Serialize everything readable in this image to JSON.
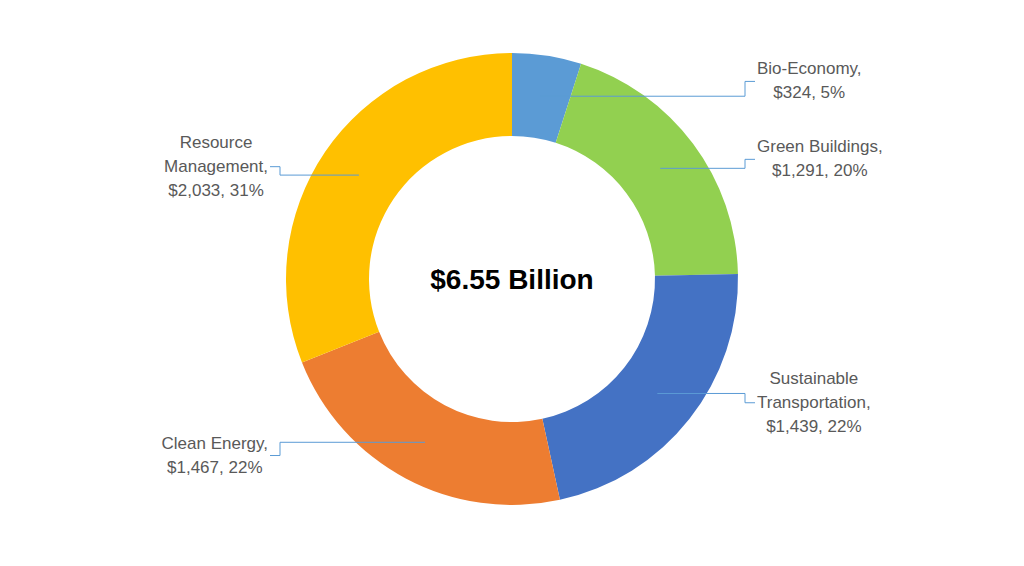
{
  "chart_data": {
    "type": "donut",
    "annotations": [
      "$6.55 Billion"
    ],
    "categories": [
      "Bio-Economy,",
      "Green Buildings,",
      "Sustainable Transportation,",
      "Clean Energy,",
      "Resource Management,"
    ],
    "values": [
      324,
      1291,
      1439,
      1467,
      2033
    ],
    "value_labels": [
      "$324, 5%",
      "$1,291, 20%",
      "$1,439, 22%",
      "$1,467, 22%",
      "$2,033, 31%"
    ],
    "colors": [
      "#5b9bd5",
      "#92d050",
      "#4472c4",
      "#ed7d31",
      "#ffc000"
    ],
    "data_labels": true
  }
}
